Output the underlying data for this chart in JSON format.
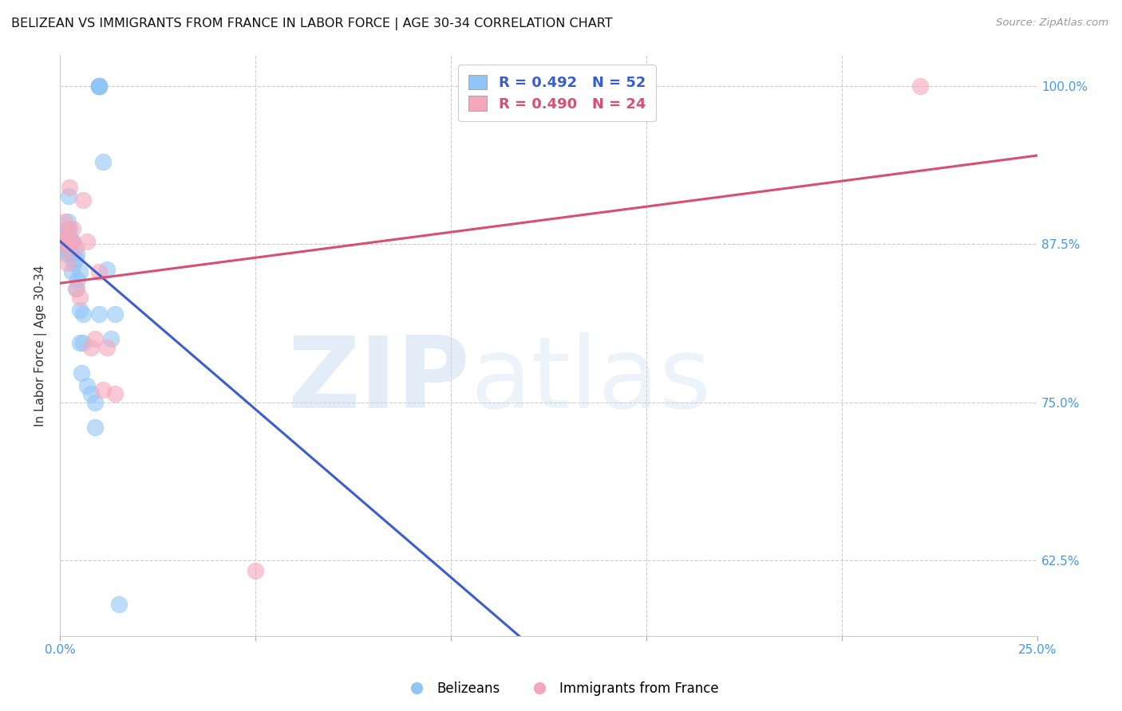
{
  "title": "BELIZEAN VS IMMIGRANTS FROM FRANCE IN LABOR FORCE | AGE 30-34 CORRELATION CHART",
  "source": "Source: ZipAtlas.com",
  "ylabel": "In Labor Force | Age 30-34",
  "xlim": [
    0.0,
    0.25
  ],
  "ylim": [
    0.565,
    1.025
  ],
  "xtick_pos": [
    0.0,
    0.05,
    0.1,
    0.15,
    0.2,
    0.25
  ],
  "xtick_labels": [
    "0.0%",
    "",
    "",
    "",
    "",
    "25.0%"
  ],
  "ytick_pos": [
    0.625,
    0.75,
    0.875,
    1.0
  ],
  "ytick_labels": [
    "62.5%",
    "75.0%",
    "87.5%",
    "100.0%"
  ],
  "blue_fill": "#92C5F7",
  "pink_fill": "#F5A8BC",
  "blue_line": "#3B5ECC",
  "pink_line": "#D94F6F",
  "blue_r": 0.492,
  "blue_n": 52,
  "pink_r": 0.49,
  "pink_n": 24,
  "belizeans_x": [
    0.0005,
    0.0008,
    0.001,
    0.001,
    0.0012,
    0.0013,
    0.0014,
    0.0015,
    0.0015,
    0.0016,
    0.0017,
    0.0018,
    0.0018,
    0.002,
    0.002,
    0.002,
    0.0021,
    0.0022,
    0.0023,
    0.0025,
    0.0025,
    0.003,
    0.003,
    0.003,
    0.0032,
    0.0035,
    0.004,
    0.004,
    0.0042,
    0.0045,
    0.005,
    0.005,
    0.0055,
    0.006,
    0.006,
    0.007,
    0.008,
    0.009,
    0.009,
    0.01,
    0.01,
    0.01,
    0.01,
    0.01,
    0.01,
    0.01,
    0.011,
    0.012,
    0.013,
    0.014,
    0.015,
    0.005
  ],
  "belizeans_y": [
    0.877,
    0.883,
    0.883,
    0.88,
    0.877,
    0.873,
    0.883,
    0.883,
    0.877,
    0.877,
    0.87,
    0.877,
    0.867,
    0.893,
    0.88,
    0.873,
    0.877,
    0.913,
    0.877,
    0.887,
    0.87,
    0.877,
    0.867,
    0.853,
    0.877,
    0.86,
    0.863,
    0.84,
    0.867,
    0.847,
    0.823,
    0.797,
    0.773,
    0.82,
    0.797,
    0.763,
    0.757,
    0.75,
    0.73,
    0.82,
    1.0,
    1.0,
    1.0,
    1.0,
    1.0,
    1.0,
    0.94,
    0.855,
    0.8,
    0.82,
    0.59,
    0.853
  ],
  "france_x": [
    0.0008,
    0.001,
    0.0012,
    0.0014,
    0.0016,
    0.0018,
    0.002,
    0.0022,
    0.0025,
    0.003,
    0.0032,
    0.004,
    0.0042,
    0.005,
    0.006,
    0.007,
    0.008,
    0.009,
    0.01,
    0.011,
    0.012,
    0.014,
    0.05,
    0.22
  ],
  "france_y": [
    0.877,
    0.88,
    0.893,
    0.877,
    0.873,
    0.86,
    0.887,
    0.877,
    0.92,
    0.877,
    0.887,
    0.873,
    0.84,
    0.833,
    0.91,
    0.877,
    0.793,
    0.8,
    0.853,
    0.76,
    0.793,
    0.757,
    0.617,
    1.0
  ]
}
